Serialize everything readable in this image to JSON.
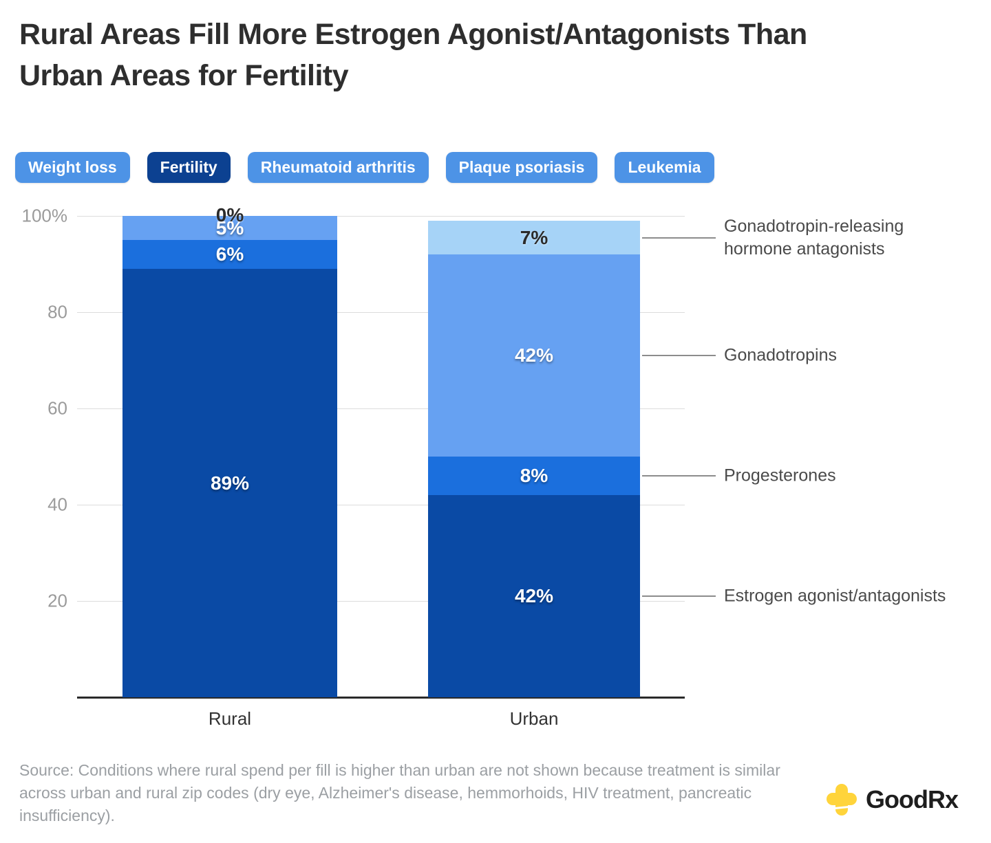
{
  "title": {
    "line1": "Rural Areas Fill More Estrogen Agonist/Antagonists Than",
    "line2": "Urban Areas for Fertility"
  },
  "tabs": {
    "colors": {
      "default_bg": "#4d93e6",
      "selected_bg": "#0c4191",
      "text": "#ffffff"
    },
    "items": [
      {
        "label": "Weight loss",
        "selected": false
      },
      {
        "label": "Fertility",
        "selected": true
      },
      {
        "label": "Rheumatoid arthritis",
        "selected": false
      },
      {
        "label": "Plaque psoriasis",
        "selected": false
      },
      {
        "label": "Leukemia",
        "selected": false
      }
    ]
  },
  "chart_data": {
    "type": "bar",
    "stacked": true,
    "categories": [
      "Rural",
      "Urban"
    ],
    "series": [
      {
        "name": "Estrogen agonist/antagonists",
        "values": [
          89,
          42
        ],
        "color": "#0a4aa5",
        "label_color": "#ffffff"
      },
      {
        "name": "Progesterones",
        "values": [
          6,
          8
        ],
        "color": "#1b6fdd",
        "label_color": "#ffffff"
      },
      {
        "name": "Gonadotropins",
        "values": [
          5,
          42
        ],
        "color": "#66a1f2",
        "label_color": "#ffffff"
      },
      {
        "name": "Gonadotropin-releasing hormone antagonists",
        "values": [
          0,
          7
        ],
        "color": "#a6d3f7",
        "label_color": "#2b2b2b"
      }
    ],
    "value_suffix": "%",
    "ylim": [
      0,
      100
    ],
    "yticks": [
      {
        "value": 100,
        "label": "100%"
      },
      {
        "value": 80,
        "label": "80"
      },
      {
        "value": 60,
        "label": "60"
      },
      {
        "value": 40,
        "label": "40"
      },
      {
        "value": 20,
        "label": "20"
      }
    ],
    "grid": true,
    "legend_position": "right-annotations",
    "annotations": [
      {
        "lines": [
          "Gonadotropin-releasing",
          "hormone antagonists"
        ]
      },
      {
        "lines": [
          "Gonadotropins"
        ]
      },
      {
        "lines": [
          "Progesterones"
        ]
      },
      {
        "lines": [
          "Estrogen agonist/antagonists"
        ]
      }
    ]
  },
  "source_note": "Source: Conditions where rural spend per fill is higher than urban are not shown because treatment is similar across urban and rural zip codes (dry eye, Alzheimer's disease, hemmorhoids, HIV treatment, pancreatic insufficiency).",
  "logo": {
    "text": "GoodRx",
    "cross_color": "#ffd43b"
  }
}
